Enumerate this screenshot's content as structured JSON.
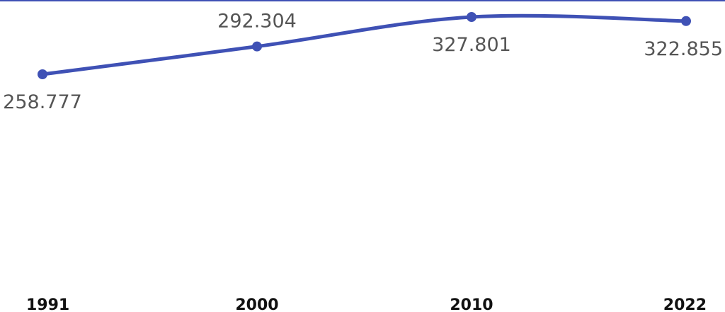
{
  "chart_data": {
    "type": "line",
    "title": "",
    "xlabel": "",
    "ylabel": "",
    "categories": [
      "1991",
      "2000",
      "2010",
      "2022"
    ],
    "series": [
      {
        "values": [
          258.777,
          292.304,
          327.801,
          322.855
        ],
        "labels": [
          "258.777",
          "292.304",
          "327.801",
          "322.855"
        ],
        "color": "#3f51b5"
      }
    ],
    "ylim": [
      0,
      340
    ],
    "grid": false,
    "legend": "none",
    "frame_top_line_color": "#3f51b5"
  }
}
